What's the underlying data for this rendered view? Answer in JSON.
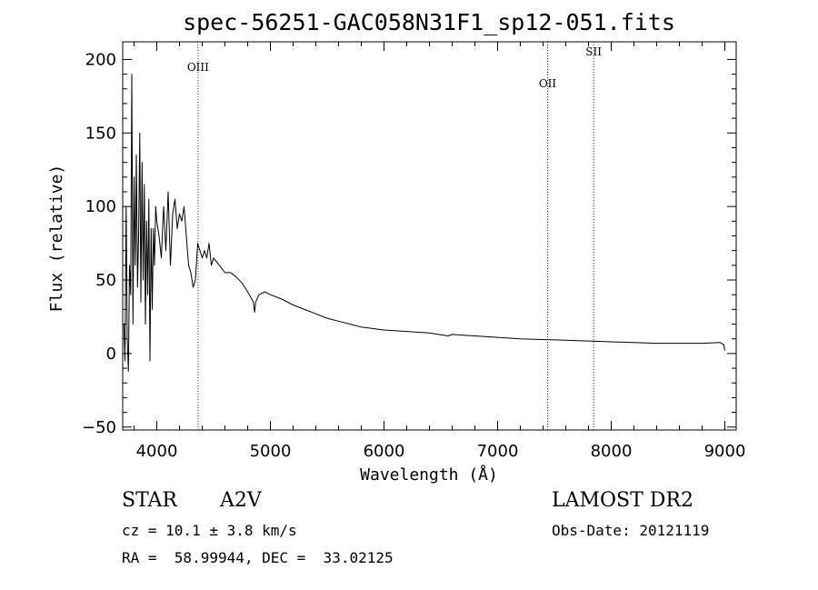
{
  "chart_data": {
    "type": "line",
    "title": "spec-56251-GAC058N31F1_sp12-051.fits",
    "xlabel": "Wavelength (Å)",
    "ylabel": "Flux (relative)",
    "xlim": [
      3700,
      9100
    ],
    "ylim": [
      -52,
      212
    ],
    "xticks": [
      4000,
      5000,
      6000,
      7000,
      8000,
      9000
    ],
    "yticks": [
      -50,
      0,
      50,
      100,
      150,
      200
    ],
    "grid": false,
    "line_color": "#000000",
    "marker_color": "#8b0000",
    "lines": [
      {
        "name": "OIII",
        "x": 4363
      },
      {
        "name": "OII",
        "x": 7440
      },
      {
        "name": "SII",
        "x": 7845
      }
    ],
    "series": [
      {
        "x": [
          3710,
          3720,
          3730,
          3740,
          3750,
          3760,
          3770,
          3780,
          3790,
          3800,
          3810,
          3820,
          3830,
          3840,
          3850,
          3860,
          3870,
          3880,
          3890,
          3900,
          3910,
          3920,
          3930,
          3940,
          3950,
          3960,
          3970,
          3980,
          3990,
          4000,
          4020,
          4040,
          4060,
          4080,
          4100,
          4120,
          4140,
          4160,
          4180,
          4200,
          4220,
          4240,
          4260,
          4280,
          4300,
          4320,
          4340,
          4360,
          4380,
          4400,
          4420,
          4440,
          4460,
          4480,
          4500,
          4550,
          4600,
          4650,
          4700,
          4750,
          4800,
          4850,
          4861,
          4870,
          4900,
          4950,
          5000,
          5100,
          5200,
          5300,
          5400,
          5500,
          5600,
          5700,
          5800,
          5900,
          6000,
          6200,
          6400,
          6563,
          6600,
          6800,
          7000,
          7200,
          7400,
          7600,
          7800,
          8000,
          8200,
          8400,
          8600,
          8800,
          8960,
          8990,
          9000
        ],
        "values": [
          20,
          -5,
          100,
          10,
          -12,
          60,
          40,
          190,
          20,
          120,
          60,
          135,
          45,
          80,
          150,
          35,
          130,
          50,
          115,
          20,
          90,
          40,
          105,
          -5,
          85,
          30,
          85,
          60,
          100,
          90,
          80,
          65,
          100,
          70,
          110,
          60,
          95,
          105,
          85,
          95,
          90,
          100,
          80,
          60,
          55,
          45,
          50,
          75,
          70,
          65,
          70,
          65,
          75,
          60,
          65,
          60,
          55,
          55,
          52,
          48,
          42,
          35,
          28,
          35,
          40,
          42,
          40,
          37,
          33,
          30,
          27,
          24,
          22,
          20,
          18,
          17,
          16,
          15,
          14,
          12,
          13,
          12,
          11,
          10,
          9.5,
          9,
          8.5,
          8,
          7.5,
          7,
          7,
          7,
          7.5,
          6,
          2
        ]
      }
    ]
  },
  "info": {
    "object_class": "STAR",
    "subclass": "A2V",
    "survey": "LAMOST DR2",
    "cz": "cz = 10.1 ± 3.8 km/s",
    "obs_date": "Obs-Date: 20121119",
    "coords": "RA =  58.99944, DEC =  33.02125"
  }
}
